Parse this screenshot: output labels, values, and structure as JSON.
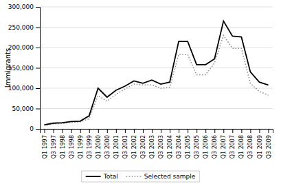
{
  "chart_data": {
    "type": "line",
    "ylabel": "Immigrants",
    "categories": [
      "Q1 1997",
      "Q3 1997",
      "Q1 1998",
      "Q3 1998",
      "Q1 1999",
      "Q3 1999",
      "Q1 2000",
      "Q3 2000",
      "Q1 2001",
      "Q3 2001",
      "Q1 2002",
      "Q3 2002",
      "Q1 2003",
      "Q3 2003",
      "Q1 2004",
      "Q3 2004",
      "Q1 2005",
      "Q3 2005",
      "Q1 2006",
      "Q3 2006",
      "Q1 2007",
      "Q3 2007",
      "Q1 2008",
      "Q3 2008",
      "Q1 2009",
      "Q3 2009"
    ],
    "series": [
      {
        "name": "Total",
        "color": "#000000",
        "line_style": "solid",
        "values": [
          10000,
          14000,
          15000,
          18000,
          19000,
          32000,
          100000,
          78000,
          95000,
          105000,
          118000,
          112000,
          120000,
          110000,
          115000,
          215000,
          215000,
          158000,
          158000,
          172000,
          265000,
          228000,
          226000,
          140000,
          115000,
          108000
        ]
      },
      {
        "name": "Selected sample",
        "color": "#888888",
        "line_style": "dotted",
        "values": [
          9000,
          12000,
          13000,
          16000,
          17000,
          25000,
          82000,
          68000,
          85000,
          98000,
          110000,
          108000,
          108000,
          100000,
          102000,
          183000,
          183000,
          133000,
          133000,
          162000,
          230000,
          198000,
          198000,
          112000,
          92000,
          83000
        ]
      }
    ],
    "ylim": [
      0,
      300000
    ],
    "yticks": [
      0,
      {
        "value": 50000,
        "label": "50,000"
      },
      {
        "value": 100000,
        "label": "100,000"
      },
      {
        "value": 150000,
        "label": "150,000"
      },
      {
        "value": 200000,
        "label": "200,000"
      },
      {
        "value": 250000,
        "label": "250,000"
      },
      {
        "value": 300000,
        "label": "300,000"
      }
    ],
    "grid": true,
    "legend": "bottom"
  }
}
